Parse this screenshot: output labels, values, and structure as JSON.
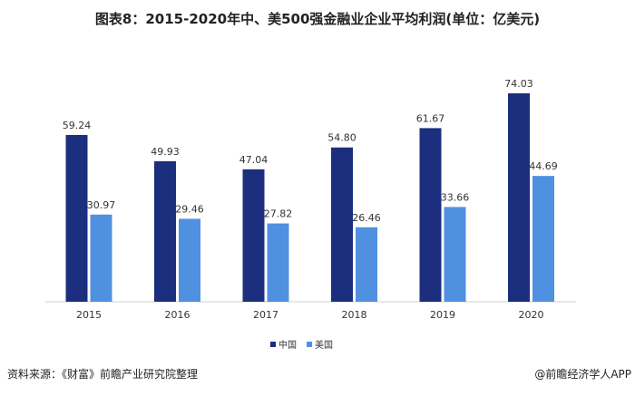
{
  "chart_data": {
    "type": "bar",
    "title": "图表8：2015-2020年中、美500强金融业企业平均利润(单位：亿美元)",
    "categories": [
      "2015",
      "2016",
      "2017",
      "2018",
      "2019",
      "2020"
    ],
    "series": [
      {
        "name": "中国",
        "color": "#1b2f7e",
        "values": [
          59.24,
          49.93,
          47.04,
          54.8,
          61.67,
          74.03
        ]
      },
      {
        "name": "美国",
        "color": "#5090e0",
        "values": [
          30.97,
          29.46,
          27.82,
          26.46,
          33.66,
          44.69
        ]
      }
    ],
    "ylim": [
      0,
      80
    ],
    "grid": false,
    "legend": "bottom-center"
  },
  "footer": {
    "source": "资料来源：《财富》前瞻产业研究院整理",
    "credit": "@前瞻经济学人APP"
  }
}
